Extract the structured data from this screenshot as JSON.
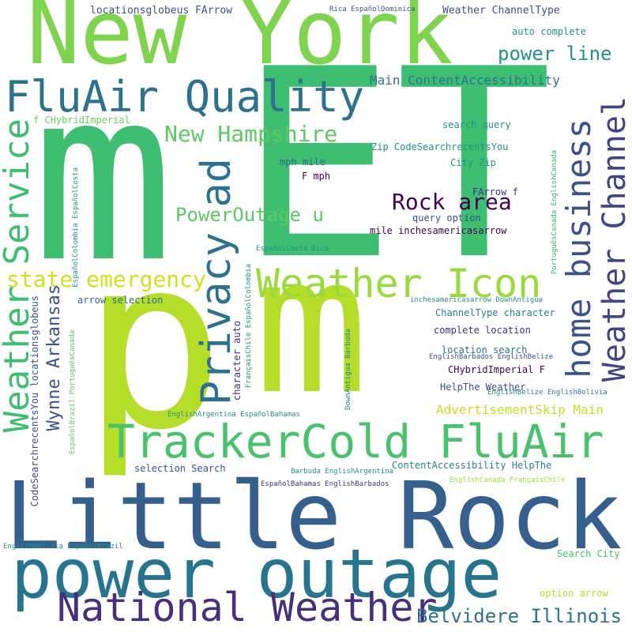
{
  "colors": {
    "background": "#ffffff",
    "palette": [
      "#440154",
      "#472f7d",
      "#3b528b",
      "#2c728e",
      "#21918c",
      "#28ae80",
      "#5ec962",
      "#addc30",
      "#fde725"
    ]
  },
  "words": [
    {
      "id": "w-m1",
      "text": "m",
      "color": "#3dbe70"
    },
    {
      "id": "w-et",
      "text": "ET",
      "color": "#3dbe70"
    },
    {
      "id": "w-newyork",
      "text": "New York",
      "color": "#7ed34f"
    },
    {
      "id": "w-p",
      "text": "p",
      "color": "#b5de2b"
    },
    {
      "id": "w-m2",
      "text": "m",
      "color": "#b5de2b"
    },
    {
      "id": "w-littlerock",
      "text": "Little Rock",
      "color": "#35608d"
    },
    {
      "id": "w-poweroutage",
      "text": "power outage",
      "color": "#26748e"
    },
    {
      "id": "w-trackercold",
      "text": "TrackerCold FluAir",
      "color": "#4ac16d"
    },
    {
      "id": "w-fluairquality",
      "text": "FluAir Quality",
      "color": "#2c728e"
    },
    {
      "id": "w-weathericon",
      "text": "Weather Icon",
      "color": "#9bd93c"
    },
    {
      "id": "w-nationalweather",
      "text": "National Weather",
      "color": "#472f7d"
    },
    {
      "id": "w-weatherservice",
      "text": "Weather Service",
      "color": "#3dbe70"
    },
    {
      "id": "w-privacyad",
      "text": "Privacy ad",
      "color": "#2c728e"
    },
    {
      "id": "w-weatherchannel",
      "text": "Weather Channel",
      "color": "#414487"
    },
    {
      "id": "w-homebusiness",
      "text": "home business",
      "color": "#3b528b"
    },
    {
      "id": "w-stateemergency",
      "text": "state emergency",
      "color": "#d0e11c"
    },
    {
      "id": "w-newhampshire",
      "text": "New Hampshire",
      "color": "#5ec962"
    },
    {
      "id": "w-poweroutageu",
      "text": "PowerOutage u",
      "color": "#5ec962"
    },
    {
      "id": "w-rockarea",
      "text": "Rock area",
      "color": "#440154"
    },
    {
      "id": "w-wynnearkansas",
      "text": "Wynne Arkansas",
      "color": "#3b528b"
    },
    {
      "id": "w-belvidere",
      "text": "Belvidere Illinois",
      "color": "#2c728e"
    },
    {
      "id": "w-powerline",
      "text": "power line",
      "color": "#21918c"
    },
    {
      "id": "w-maincontent",
      "text": "Main ContentAccessibility",
      "color": "#2c728e"
    },
    {
      "id": "w-advertisement",
      "text": "AdvertisementSkip Main",
      "color": "#c2df23"
    },
    {
      "id": "w-locationsglobeus",
      "text": "locationsglobeus FArrow",
      "color": "#3b528b"
    },
    {
      "id": "w-weatherchanneltype",
      "text": "Weather ChannelType",
      "color": "#3b528b"
    },
    {
      "id": "w-autocomplete",
      "text": "auto complete",
      "color": "#21918c"
    },
    {
      "id": "w-fchybrid",
      "text": "f CHybridImperial",
      "color": "#6ccd5a"
    },
    {
      "id": "w-searchquery",
      "text": "search query",
      "color": "#21918c"
    },
    {
      "id": "w-zipcode",
      "text": "Zip CodeSearchrecentsYou",
      "color": "#21918c"
    },
    {
      "id": "w-cityzip",
      "text": "City Zip",
      "color": "#21918c"
    },
    {
      "id": "w-mphmile",
      "text": "mph mile",
      "color": "#31688e"
    },
    {
      "id": "w-fmph",
      "text": "F mph",
      "color": "#440154"
    },
    {
      "id": "w-farrowf",
      "text": "FArrow f",
      "color": "#472f7d"
    },
    {
      "id": "w-queryoption",
      "text": "query option",
      "color": "#3b528b"
    },
    {
      "id": "w-mileinches",
      "text": "mile inchesamericasarrow",
      "color": "#440154"
    },
    {
      "id": "w-arrowselection",
      "text": "arrow selection",
      "color": "#31688e"
    },
    {
      "id": "w-channeltype",
      "text": "ChannelType character",
      "color": "#26828e"
    },
    {
      "id": "w-completelocation",
      "text": "complete location",
      "color": "#472f7d"
    },
    {
      "id": "w-locationsearch",
      "text": "location search",
      "color": "#2c728e"
    },
    {
      "id": "w-chybridf",
      "text": "CHybridImperial F",
      "color": "#440154"
    },
    {
      "id": "w-helptheweather",
      "text": "HelpThe Weather",
      "color": "#3b528b"
    },
    {
      "id": "w-selectionsearch",
      "text": "selection Search",
      "color": "#3b528b"
    },
    {
      "id": "w-contentaccess",
      "text": "ContentAccessibility HelpThe",
      "color": "#26828e"
    },
    {
      "id": "w-searchcity",
      "text": "Search City",
      "color": "#4ac16d"
    },
    {
      "id": "w-optionarrow",
      "text": "option arrow",
      "color": "#b5de2b"
    },
    {
      "id": "w-ricaespanol",
      "text": "Rica EspañolDominica",
      "color": "#3b528b"
    },
    {
      "id": "w-inchesamericas",
      "text": "inchesamericasarrow DownAntigua",
      "color": "#21918c"
    },
    {
      "id": "w-englishbarbados",
      "text": "EnglishBarbados EnglishBelize",
      "color": "#3b528b"
    },
    {
      "id": "w-englishbelize",
      "text": "EnglishBelize EnglishBolivia",
      "color": "#26828e"
    },
    {
      "id": "w-englishargentina",
      "text": "EnglishArgentina EspañolBahamas",
      "color": "#21918c"
    },
    {
      "id": "w-barbuda",
      "text": "Barbuda EnglishArgentina",
      "color": "#21918c"
    },
    {
      "id": "w-espanolbahamas",
      "text": "EspañolBahamas EnglishBarbados",
      "color": "#472f7d"
    },
    {
      "id": "w-englishcanada",
      "text": "EnglishCanada FrançaisChile",
      "color": "#a0da39"
    },
    {
      "id": "w-englishbolivia",
      "text": "EnglishBolivia EspañolBrazil",
      "color": "#21918c"
    },
    {
      "id": "w-espanolcostarica",
      "text": "EspañolCosta Rica",
      "color": "#21918c"
    },
    {
      "id": "w-charauto",
      "text": "character auto",
      "color": "#472f7d"
    },
    {
      "id": "w-francaischile",
      "text": "FrançaisChile EspañolColombia",
      "color": "#21918c"
    },
    {
      "id": "w-downantigua",
      "text": "DownAntigua Barbuda",
      "color": "#26828e"
    },
    {
      "id": "w-codesearch",
      "text": "CodeSearchrecentsYou locationsglobeus",
      "color": "#3b528b"
    },
    {
      "id": "w-espanolbrazil",
      "text": "EspañolBrazil PortuguêsCanada",
      "color": "#5ec962"
    },
    {
      "id": "w-espanolcolombia",
      "text": "EspañolColombia EspañolCosta",
      "color": "#21918c"
    },
    {
      "id": "w-portuguescanada",
      "text": "PortuguêsCanada EnglishCanada",
      "color": "#35b779"
    }
  ]
}
